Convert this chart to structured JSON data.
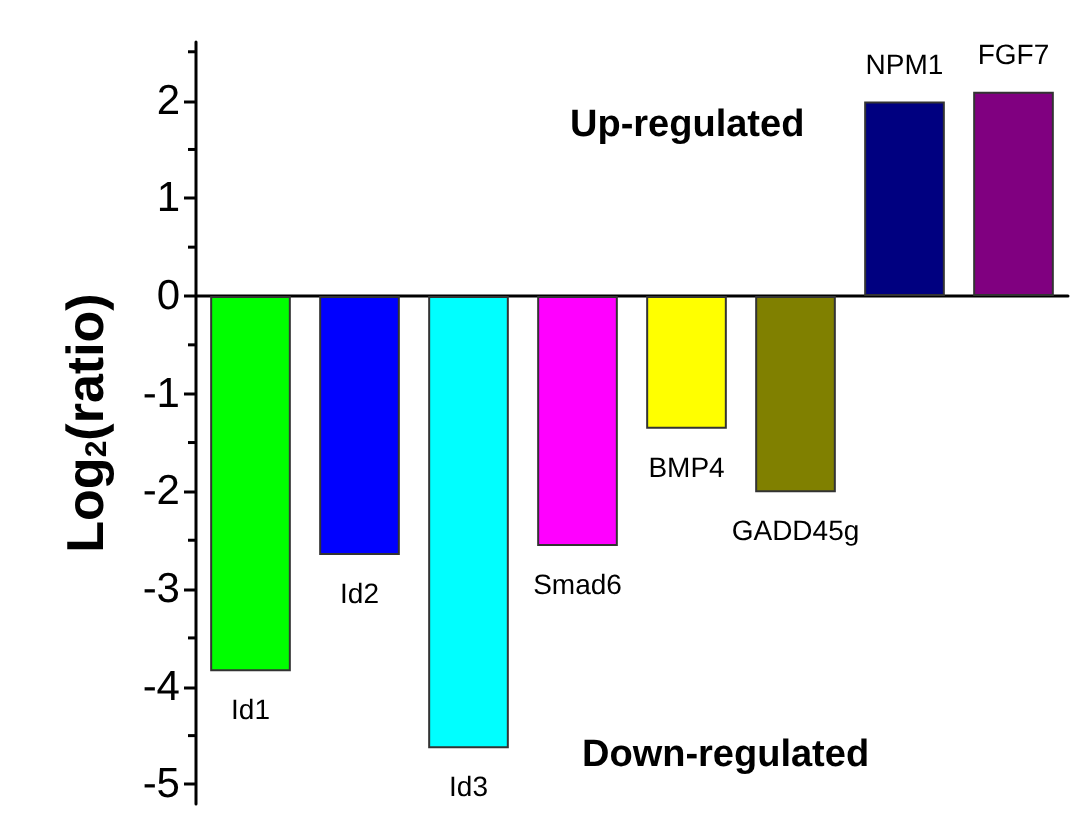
{
  "chart_data": {
    "type": "bar",
    "ylabel": "Log$_{2}$(ratio)",
    "categories": [
      "Id1",
      "Id2",
      "Id3",
      "Smad6",
      "BMP4",
      "GADD45g",
      "NPM1",
      "FGF7"
    ],
    "values": [
      -3.84,
      -2.65,
      -4.63,
      -2.56,
      -1.36,
      -2.01,
      1.99,
      2.09
    ],
    "colors": [
      "#00ff00",
      "#0000ff",
      "#00ffff",
      "#ff00ff",
      "#ffff00",
      "#808000",
      "#000080",
      "#800080"
    ],
    "ylim": [
      -5.2,
      2.6
    ],
    "yticks": [
      -5,
      -4,
      -3,
      -2,
      -1,
      0,
      1,
      2
    ],
    "annotations": [
      "Up-regulated",
      "Down-regulated"
    ]
  }
}
